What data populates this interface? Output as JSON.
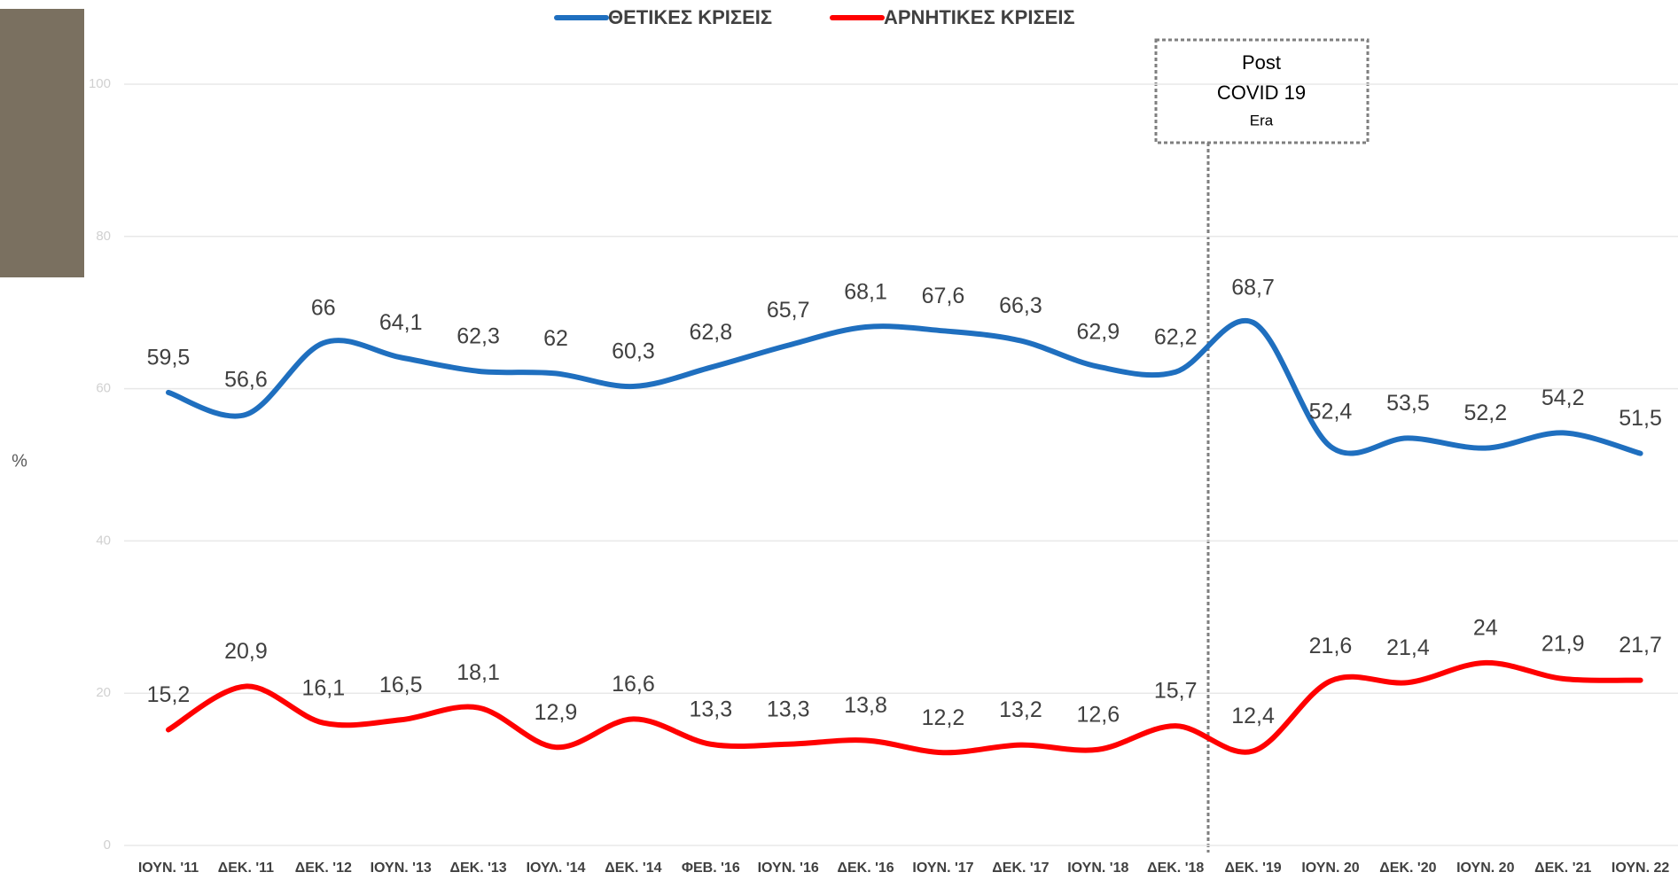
{
  "chart_data": {
    "type": "line",
    "categories": [
      "ΙΟΥΝ. '11",
      "ΔΕΚ. '11",
      "ΔΕΚ. '12",
      "ΙΟΥΝ. '13",
      "ΔΕΚ. '13",
      "ΙΟΥΛ. '14",
      "ΔΕΚ. '14",
      "ΦΕΒ. '16",
      "ΙΟΥΝ. '16",
      "ΔΕΚ. '16",
      "ΙΟΥΝ. '17",
      "ΔΕΚ. '17",
      "ΙΟΥΝ. '18",
      "ΔΕΚ. '18",
      "ΔΕΚ. '19",
      "ΙΟΥΝ. 20",
      "ΔΕΚ. '20",
      "ΙΟΥΝ. 20",
      "ΔΕΚ. '21",
      "ΙΟΥΝ. 22"
    ],
    "series": [
      {
        "name": "ΘΕΤΙΚΕΣ ΚΡΙΣΕΙΣ",
        "color": "#1f6fbf",
        "values": [
          59.5,
          56.6,
          66,
          64.1,
          62.3,
          62,
          60.3,
          62.8,
          65.7,
          68.1,
          67.6,
          66.3,
          62.9,
          62.2,
          68.7,
          52.4,
          53.5,
          52.2,
          54.2,
          51.5
        ],
        "value_labels": [
          "59,5",
          "56,6",
          "66",
          "64,1",
          "62,3",
          "62",
          "60,3",
          "62,8",
          "65,7",
          "68,1",
          "67,6",
          "66,3",
          "62,9",
          "62,2",
          "68,7",
          "52,4",
          "53,5",
          "52,2",
          "54,2",
          "51,5"
        ]
      },
      {
        "name": "ΑΡΝΗΤΙΚΕΣ ΚΡΙΣΕΙΣ",
        "color": "#ff0000",
        "values": [
          15.2,
          20.9,
          16.1,
          16.5,
          18.1,
          12.9,
          16.6,
          13.3,
          13.3,
          13.8,
          12.2,
          13.2,
          12.6,
          15.7,
          12.4,
          21.6,
          21.4,
          24,
          21.9,
          21.7
        ],
        "value_labels": [
          "15,2",
          "20,9",
          "16,1",
          "16,5",
          "18,1",
          "12,9",
          "16,6",
          "13,3",
          "13,3",
          "13,8",
          "12,2",
          "13,2",
          "12,6",
          "15,7",
          "12,4",
          "21,6",
          "21,4",
          "24",
          "21,9",
          "21,7"
        ]
      }
    ],
    "y_label": "%",
    "ylim": [
      0,
      100
    ],
    "yticks": [
      0,
      20,
      40,
      60,
      80,
      100
    ],
    "grid": true,
    "annotation": [
      "Post",
      "COVID 19",
      "Era"
    ]
  }
}
